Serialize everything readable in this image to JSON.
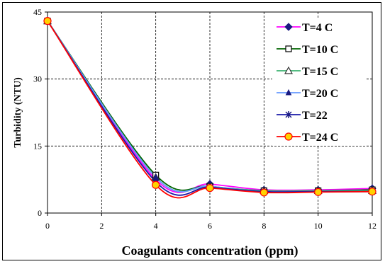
{
  "chart_data": {
    "type": "line",
    "title": "",
    "xlabel": "Coagulants concentration (ppm)",
    "ylabel": "Turbidity (NTU)",
    "xlim": [
      0,
      12
    ],
    "ylim": [
      0,
      45
    ],
    "xticks": [
      0,
      2,
      4,
      6,
      8,
      10,
      12
    ],
    "yticks": [
      0,
      15,
      30,
      45
    ],
    "grid": "dashed",
    "legend_position": "top-right",
    "x": [
      0,
      4,
      6,
      8,
      10,
      12
    ],
    "series": [
      {
        "name": "T=4 C",
        "color": "#ff00ff",
        "marker": "diamond",
        "values": [
          43,
          7.5,
          6.5,
          5.2,
          5.2,
          5.5
        ]
      },
      {
        "name": "T=10 C",
        "color": "#006400",
        "marker": "square-open",
        "values": [
          43,
          8.5,
          6.0,
          5.0,
          5.0,
          5.2
        ]
      },
      {
        "name": "T=15 C",
        "color": "#3cb371",
        "marker": "triangle-open",
        "values": [
          43,
          8.0,
          6.0,
          5.0,
          5.0,
          5.0
        ]
      },
      {
        "name": "T=20 C",
        "color": "#6699ff",
        "marker": "triangle-small",
        "values": [
          43,
          8.0,
          6.0,
          4.8,
          4.8,
          4.8
        ]
      },
      {
        "name": "T=22",
        "color": "#1a1aa8",
        "marker": "star",
        "values": [
          43,
          7.0,
          5.8,
          4.8,
          4.8,
          4.8
        ]
      },
      {
        "name": "T=24 C",
        "color": "#ff0000",
        "marker": "circle-yellow",
        "values": [
          43,
          6.3,
          5.6,
          4.6,
          4.7,
          4.8
        ]
      }
    ]
  }
}
